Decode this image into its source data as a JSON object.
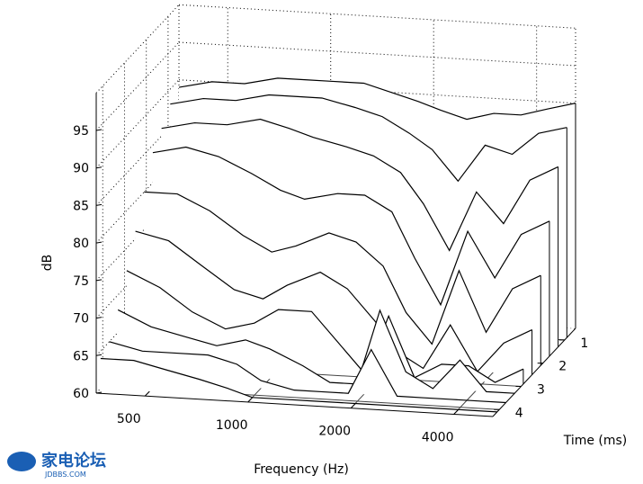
{
  "chart_data": {
    "type": "waterfall",
    "xlabel": "Frequency (Hz)",
    "ylabel": "Time (ms)",
    "zlabel": "dB",
    "xscale": "log",
    "xlim": [
      360,
      5200
    ],
    "xticks": [
      500,
      1000,
      2000,
      4000
    ],
    "ylim": [
      0.5,
      4.3
    ],
    "yticks": [
      1,
      2,
      3,
      4
    ],
    "zlim": [
      60,
      100
    ],
    "zticks": [
      60,
      65,
      70,
      75,
      80,
      85,
      90,
      95
    ],
    "grid": true,
    "color": "#000000",
    "x": [
      360,
      450,
      560,
      700,
      850,
      1000,
      1250,
      1500,
      1800,
      2100,
      2500,
      3000,
      3600,
      4300,
      5200
    ],
    "slices": [
      {
        "t": 0.5,
        "values": [
          89,
          90,
          90,
          91,
          91,
          91,
          91,
          90,
          89,
          88,
          87,
          88,
          88,
          89,
          90
        ]
      },
      {
        "t": 0.9,
        "values": [
          88,
          89,
          89,
          90,
          90,
          90,
          89,
          88,
          86,
          84,
          80,
          85,
          84,
          87,
          88
        ]
      },
      {
        "t": 1.3,
        "values": [
          86,
          87,
          87,
          88,
          87,
          86,
          85,
          84,
          82,
          78,
          72,
          80,
          76,
          82,
          84
        ]
      },
      {
        "t": 1.7,
        "values": [
          84,
          85,
          84,
          82,
          80,
          79,
          80,
          80,
          78,
          72,
          66,
          76,
          70,
          76,
          78
        ]
      },
      {
        "t": 2.1,
        "values": [
          80,
          80,
          78,
          75,
          73,
          74,
          76,
          75,
          72,
          66,
          62,
          72,
          64,
          70,
          72
        ]
      },
      {
        "t": 2.5,
        "values": [
          76,
          75,
          72,
          69,
          68,
          70,
          72,
          70,
          66,
          62,
          60,
          66,
          60,
          64,
          66
        ]
      },
      {
        "t": 2.9,
        "values": [
          72,
          70,
          67,
          65,
          66,
          68,
          68,
          64,
          60,
          68,
          60,
          62,
          62,
          60,
          62
        ]
      },
      {
        "t": 3.3,
        "values": [
          68,
          66,
          65,
          64,
          65,
          64,
          62,
          60,
          60,
          70,
          62,
          60,
          64,
          60,
          60
        ]
      },
      {
        "t": 3.7,
        "values": [
          65,
          64,
          64,
          64,
          63,
          61,
          60,
          60,
          60,
          66,
          60,
          60,
          60,
          60,
          60
        ]
      },
      {
        "t": 4.1,
        "values": [
          64,
          64,
          63,
          62,
          61,
          60,
          60,
          60,
          60,
          60,
          60,
          60,
          60,
          60,
          60
        ]
      }
    ]
  },
  "watermark": {
    "logo": "家电论坛",
    "site": "JDBBS.COM"
  }
}
